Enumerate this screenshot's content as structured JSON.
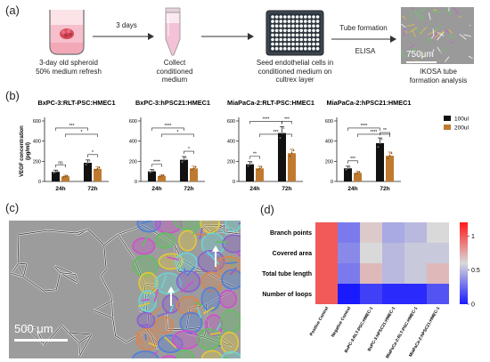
{
  "panel_labels": {
    "a": "(a)",
    "b": "(b)",
    "c": "(c)",
    "d": "(d)"
  },
  "workflow": {
    "arrow_label": "3 days",
    "tube_formation": "Tube formation",
    "elisa": "ELISA",
    "scale_bar": "750μm",
    "steps": {
      "spheroid": [
        "3-day old spheroid",
        "50% medium refresh"
      ],
      "collect": [
        "Collect",
        "conditioned",
        "medium"
      ],
      "seed": [
        "Seed endothelial cells in",
        "conditioned medium on",
        "cultrex layer"
      ],
      "analysis": [
        "IKOSA tube",
        "formation analysis"
      ]
    }
  },
  "panel_c": {
    "scale_bar": "500 μm"
  },
  "colors": {
    "bar_100ul": "#111111",
    "bar_200ul": "#c07a30",
    "accent_arrow": "#333333"
  },
  "chart_data": [
    {
      "type": "bar",
      "title": "BxPC-3:RLT-PSC:HMEC1",
      "categories": [
        "24h",
        "72h"
      ],
      "ylabel": "VEGF concentration (pg/ml)",
      "ylim": [
        0,
        600
      ],
      "yticks": [
        0,
        200,
        400,
        600
      ],
      "series": [
        {
          "name": "100ul",
          "values": [
            95,
            185
          ]
        },
        {
          "name": "200ul",
          "values": [
            50,
            125
          ]
        }
      ],
      "sig": [
        {
          "from": "24h-100ul",
          "to": "24h-200ul",
          "label": "ns"
        },
        {
          "from": "24h-100ul",
          "to": "72h-100ul",
          "label": "***"
        },
        {
          "from": "24h-200ul",
          "to": "72h-200ul",
          "label": "*"
        },
        {
          "from": "72h-100ul",
          "to": "72h-200ul",
          "label": "*"
        }
      ]
    },
    {
      "type": "bar",
      "title": "BxPC-3:hPSC21:HMEC1",
      "categories": [
        "24h",
        "72h"
      ],
      "ylim": [
        0,
        600
      ],
      "yticks": [
        0,
        200,
        400,
        600
      ],
      "series": [
        {
          "name": "100ul",
          "values": [
            100,
            215
          ]
        },
        {
          "name": "200ul",
          "values": [
            55,
            130
          ]
        }
      ],
      "sig": [
        {
          "from": "24h-100ul",
          "to": "24h-200ul",
          "label": "****"
        },
        {
          "from": "24h-100ul",
          "to": "72h-100ul",
          "label": "****"
        },
        {
          "from": "24h-200ul",
          "to": "72h-200ul",
          "label": "*"
        },
        {
          "from": "72h-100ul",
          "to": "72h-200ul",
          "label": "*"
        }
      ]
    },
    {
      "type": "bar",
      "title": "MiaPaCa-2:RLT-PSC:HMEC1",
      "categories": [
        "24h",
        "72h"
      ],
      "ylim": [
        0,
        600
      ],
      "yticks": [
        0,
        200,
        400,
        600
      ],
      "series": [
        {
          "name": "100ul",
          "values": [
            170,
            480
          ]
        },
        {
          "name": "200ul",
          "values": [
            130,
            280
          ]
        }
      ],
      "sig": [
        {
          "from": "24h-100ul",
          "to": "24h-200ul",
          "label": "**"
        },
        {
          "from": "24h-100ul",
          "to": "72h-100ul",
          "label": "****"
        },
        {
          "from": "24h-200ul",
          "to": "72h-200ul",
          "label": "***"
        },
        {
          "from": "72h-100ul",
          "to": "72h-200ul",
          "label": "***"
        }
      ]
    },
    {
      "type": "bar",
      "title": "MiaPaCa-2:hPSC21:HMEC1",
      "categories": [
        "24h",
        "72h"
      ],
      "ylim": [
        0,
        600
      ],
      "yticks": [
        0,
        200,
        400,
        600
      ],
      "legend": [
        "100ul",
        "200ul"
      ],
      "series": [
        {
          "name": "100ul",
          "values": [
            130,
            380
          ]
        },
        {
          "name": "200ul",
          "values": [
            85,
            255
          ]
        }
      ],
      "sig": [
        {
          "from": "24h-100ul",
          "to": "24h-200ul",
          "label": "***"
        },
        {
          "from": "24h-100ul",
          "to": "72h-100ul",
          "label": "****"
        },
        {
          "from": "24h-200ul",
          "to": "72h-200ul",
          "label": "****"
        },
        {
          "from": "72h-100ul",
          "to": "72h-200ul",
          "label": "**"
        }
      ]
    },
    {
      "type": "heatmap",
      "rows": [
        "Branch points",
        "Covered area",
        "Total tube length",
        "Number of loops"
      ],
      "columns": [
        "Positive Control",
        "Negative Control",
        "BxPC-3:RLT-PSC:HMEC-1",
        "BxPC-3:hPSC21:HMEC-1",
        "MiaPaCa-2:RLT-PSC:HMEC-1",
        "MiaPaCa-2:hPSC21:HMEC-1"
      ],
      "values": [
        [
          1.0,
          0.3,
          0.65,
          0.45,
          0.5,
          0.6
        ],
        [
          1.0,
          0.35,
          0.6,
          0.5,
          0.55,
          0.55
        ],
        [
          1.0,
          0.3,
          0.7,
          0.5,
          0.55,
          0.7
        ],
        [
          1.0,
          0.0,
          0.12,
          0.05,
          0.05,
          0.18
        ]
      ],
      "colorbar_ticks": [
        0,
        0.5,
        1
      ],
      "colorbar_range": [
        0,
        1.2
      ],
      "colormap": [
        "#1a1aff",
        "#d9d9d9",
        "#ff1a1a"
      ]
    }
  ]
}
